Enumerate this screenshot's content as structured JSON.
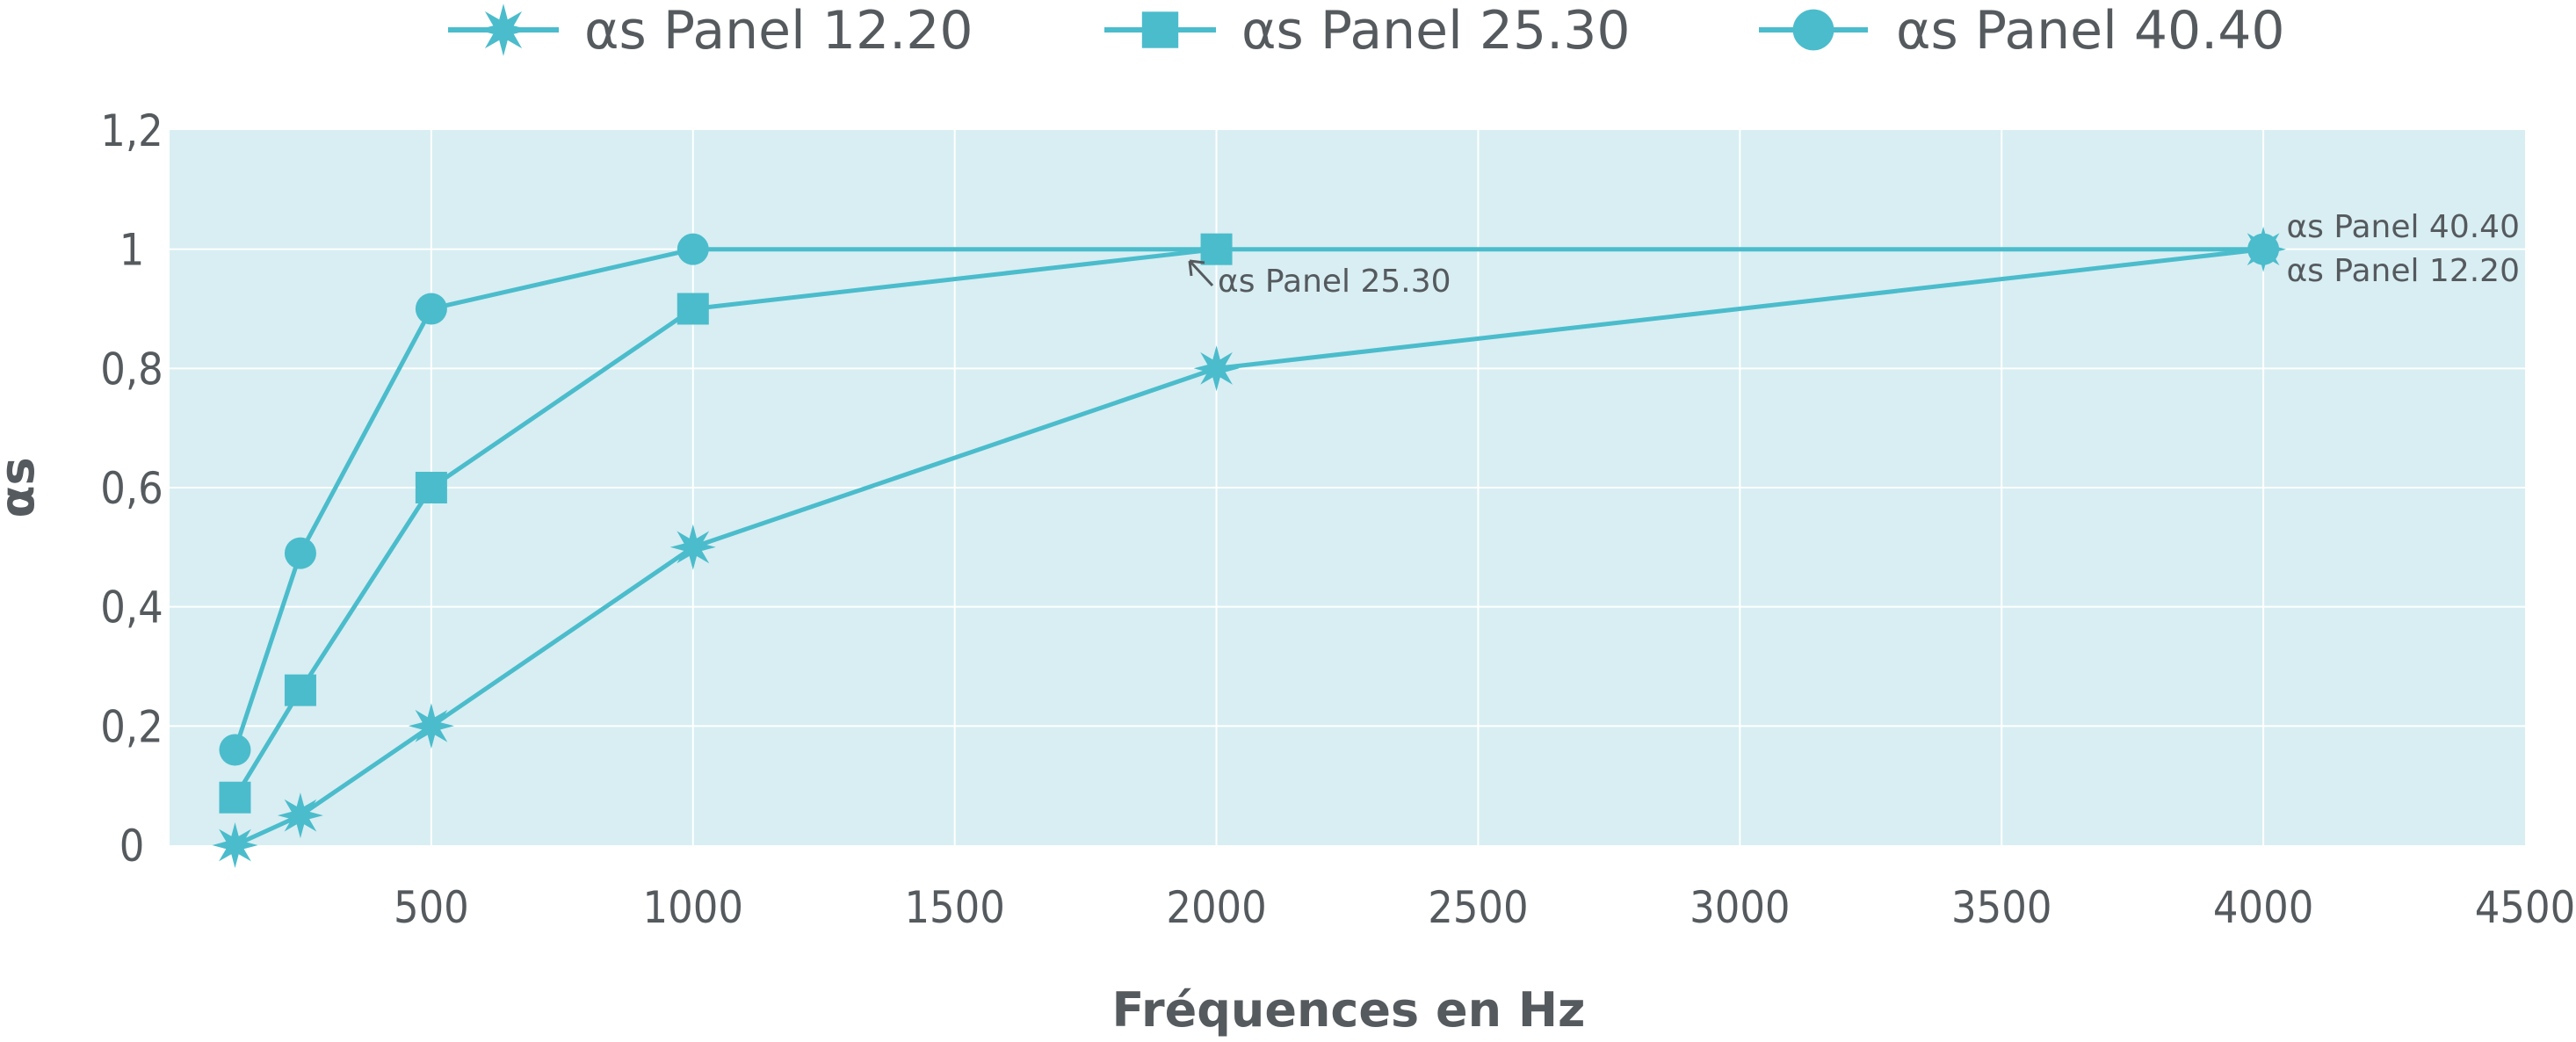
{
  "chart_data": {
    "type": "line",
    "xlabel": "Fréquences en Hz",
    "ylabel": "αs",
    "xlim": [
      0,
      4500
    ],
    "ylim": [
      0,
      1.2
    ],
    "x_ticks": [
      500,
      1000,
      1500,
      2000,
      2500,
      3000,
      3500,
      4000,
      4500
    ],
    "y_ticks": [
      0,
      0.2,
      0.4,
      0.6,
      0.8,
      1,
      1.2
    ],
    "y_tick_labels": [
      "0",
      "0,2",
      "0,4",
      "0,6",
      "0,8",
      "1",
      "1,2"
    ],
    "grid": true,
    "legend_position": "top",
    "colors": {
      "line": "#4bbccc",
      "plot_bg": "#d8eef2",
      "grid": "#ffffff",
      "text": "#555a5e"
    },
    "series": [
      {
        "name": "αs Panel 12.20",
        "marker": "star",
        "x": [
          125,
          250,
          500,
          1000,
          2000,
          4000
        ],
        "y": [
          0,
          0.05,
          0.2,
          0.5,
          0.8,
          1.0
        ]
      },
      {
        "name": "αs Panel 25.30",
        "marker": "square",
        "x": [
          125,
          250,
          500,
          1000,
          2000
        ],
        "y": [
          0.08,
          0.26,
          0.6,
          0.9,
          1.0
        ]
      },
      {
        "name": "αs Panel 40.40",
        "marker": "circle",
        "x": [
          125,
          250,
          500,
          1000,
          4000
        ],
        "y": [
          0.16,
          0.49,
          0.9,
          1.0,
          1.0
        ]
      }
    ],
    "annotations": [
      "αs Panel 25.30",
      "αs Panel 40.40",
      "αs Panel 12.20"
    ]
  }
}
